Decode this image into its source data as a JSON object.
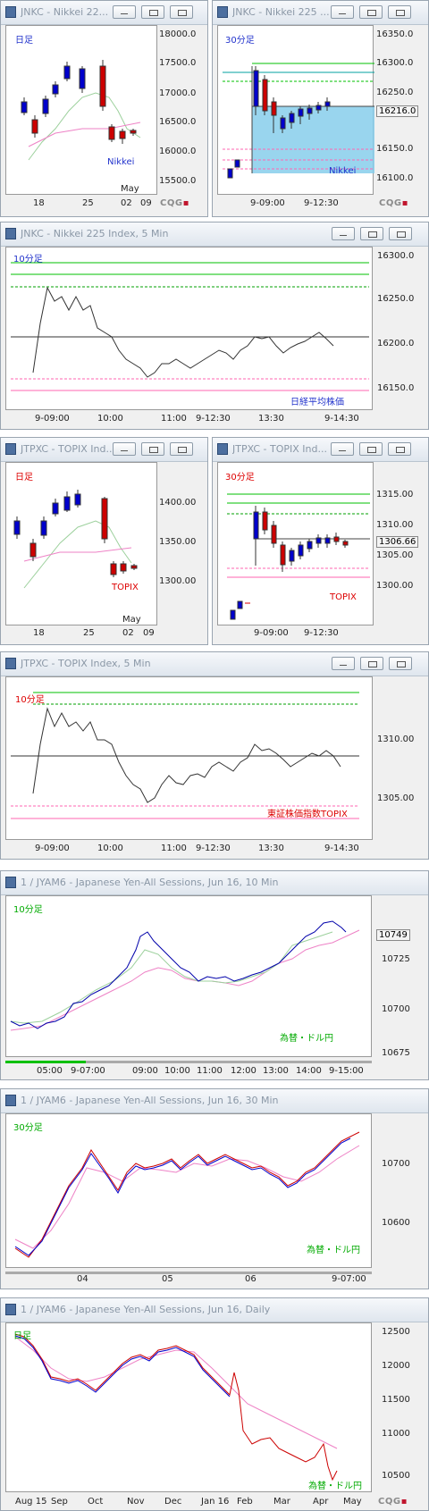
{
  "windows": [
    {
      "id": "w1",
      "title": "JNKC - Nikkei 22...",
      "period": "日足",
      "period_color": "#2233cc",
      "name": "Nikkei",
      "name_color": "#2233cc",
      "yticks": [
        "18000.0",
        "17500.0",
        "17000.0",
        "16500.0",
        "16000.0",
        "15500.0"
      ],
      "xticks": [
        "18",
        "25",
        "02",
        "09"
      ],
      "xnote": "May",
      "footer": "CQG"
    },
    {
      "id": "w2",
      "title": "JNKC - Nikkei 225 ...",
      "period": "30分足",
      "period_color": "#2233cc",
      "name": "Nikkei",
      "name_color": "#2233cc",
      "yticks": [
        "16350.0",
        "16300.0",
        "16250.0",
        "16150.0",
        "16100.0"
      ],
      "price": "16216.0",
      "xticks": [
        "9-09:00",
        "9-12:30"
      ],
      "footer": "CQG"
    },
    {
      "id": "w3",
      "title": "JNKC - Nikkei 225 Index, 5 Min",
      "period": "10分足",
      "period_color": "#2233cc",
      "name": "日経平均株価",
      "name_color": "#2233cc",
      "yticks": [
        "16300.0",
        "16250.0",
        "16200.0",
        "16150.0"
      ],
      "xticks": [
        "9-09:00",
        "10:00",
        "11:00",
        "9-12:30",
        "13:30",
        "9-14:30"
      ]
    },
    {
      "id": "w4",
      "title": "JTPXC - TOPIX Ind...",
      "period": "日足",
      "period_color": "#dd0000",
      "name": "TOPIX",
      "name_color": "#dd0000",
      "yticks": [
        "1400.00",
        "1350.00",
        "1300.00"
      ],
      "xticks": [
        "18",
        "25",
        "02",
        "09"
      ],
      "xnote": "May"
    },
    {
      "id": "w5",
      "title": "JTPXC - TOPIX Ind...",
      "period": "30分足",
      "period_color": "#dd0000",
      "name": "TOPIX",
      "name_color": "#dd0000",
      "yticks": [
        "1315.00",
        "1310.00",
        "1305.00",
        "1300.00"
      ],
      "price": "1306.66",
      "xticks": [
        "9-09:00",
        "9-12:30"
      ]
    },
    {
      "id": "w6",
      "title": "JTPXC - TOPIX Index, 5 Min",
      "period": "10分足",
      "period_color": "#dd0000",
      "name": "東証株価指数TOPIX",
      "name_color": "#dd0000",
      "yticks": [
        "1310.00",
        "1305.00"
      ],
      "xticks": [
        "9-09:00",
        "10:00",
        "11:00",
        "9-12:30",
        "13:30",
        "9-14:30"
      ]
    },
    {
      "id": "w7",
      "title": "1 / JYAM6 - Japanese Yen-All Sessions, Jun 16, 10 Min",
      "period": "10分足",
      "period_color": "#00aa00",
      "name": "為替・ドル円",
      "name_color": "#00aa00",
      "yticks": [
        "10725",
        "10700",
        "10675"
      ],
      "price": "10749",
      "xticks": [
        "05:00",
        "9-07:00",
        "09:00",
        "10:00",
        "11:00",
        "12:00",
        "13:00",
        "14:00",
        "9-15:00"
      ]
    },
    {
      "id": "w8",
      "title": "1 / JYAM6 - Japanese Yen-All Sessions, Jun 16, 30 Min",
      "period": "30分足",
      "period_color": "#00aa00",
      "name": "為替・ドル円",
      "name_color": "#00aa00",
      "yticks": [
        "10700",
        "10600"
      ],
      "xticks": [
        "04",
        "05",
        "06",
        "9-07:00"
      ]
    },
    {
      "id": "w9",
      "title": "1 / JYAM6 - Japanese Yen-All Sessions, Jun 16, Daily",
      "period": "日足",
      "period_color": "#00aa00",
      "name": "為替・ドル円",
      "name_color": "#00aa00",
      "yticks": [
        "12500",
        "12000",
        "11500",
        "11000",
        "10500"
      ],
      "xticks": [
        "Aug 15",
        "Sep",
        "Oct",
        "Nov",
        "Dec",
        "Jan 16",
        "Feb",
        "Mar",
        "Apr",
        "May"
      ],
      "footer": "CQG"
    }
  ]
}
